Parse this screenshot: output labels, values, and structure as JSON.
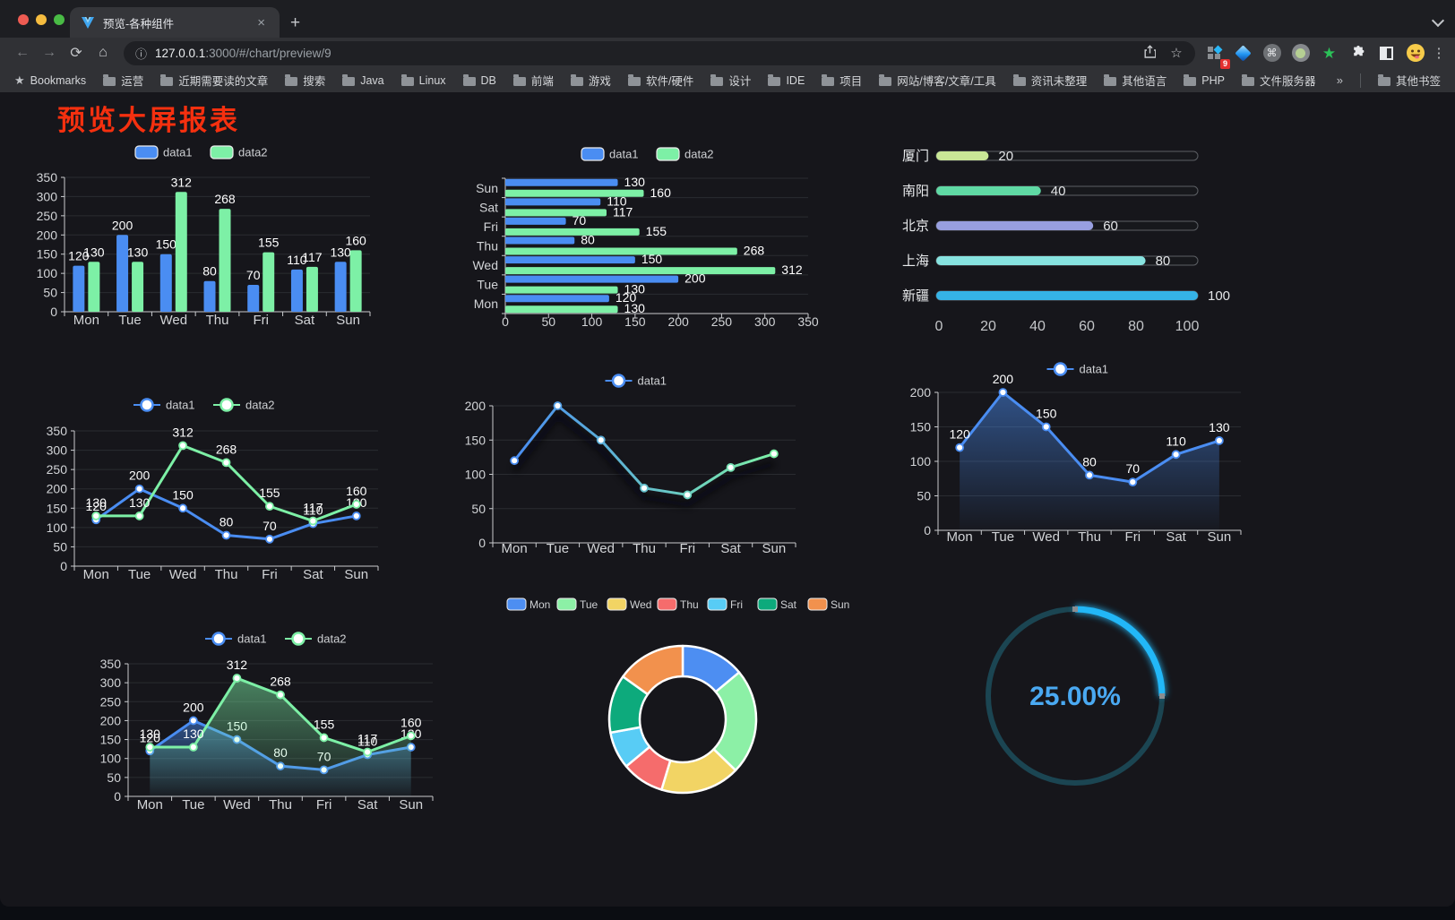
{
  "browser": {
    "tab": {
      "title": "预览-各种组件",
      "close_icon": "×",
      "new_tab_icon": "+"
    },
    "toolbar": {
      "back_icon": "←",
      "forward_icon": "→",
      "reload_icon": "⟳",
      "home_icon": "⌂",
      "url_info_icon": "ⓘ",
      "url_host": "127.0.0.1",
      "url_rest": ":3000/#/chart/preview/9",
      "star_icon": "☆",
      "extension_badge": "9",
      "command_icon": "⌘",
      "green_star_icon": "★",
      "menu_icon": "⋮"
    },
    "bookmarks_bar": {
      "star_icon": "★",
      "label": "Bookmarks",
      "folders": [
        "运营",
        "近期需要读的文章",
        "搜索",
        "Java",
        "Linux",
        "DB",
        "前端",
        "游戏",
        "软件/硬件",
        "设计",
        "IDE",
        "项目",
        "网站/博客/文章/工具",
        "资讯未整理",
        "其他语言",
        "PHP",
        "文件服务器"
      ],
      "overflow_icon": "»",
      "other_bookmarks": "其他书签"
    }
  },
  "page": {
    "title": "预览大屏报表",
    "title_color": "#f5300f"
  },
  "chart_data": [
    {
      "id": "bar-vertical",
      "type": "bar",
      "categories": [
        "Mon",
        "Tue",
        "Wed",
        "Thu",
        "Fri",
        "Sat",
        "Sun"
      ],
      "series": [
        {
          "name": "data1",
          "color": "#4a8df2",
          "values": [
            120,
            200,
            150,
            80,
            70,
            110,
            130
          ]
        },
        {
          "name": "data2",
          "color": "#7df0a6",
          "values": [
            130,
            130,
            312,
            268,
            155,
            117,
            160
          ]
        }
      ],
      "ylim": [
        0,
        350
      ],
      "ytick_step": 50,
      "grid": true,
      "legend_position": "top"
    },
    {
      "id": "bar-horizontal",
      "type": "bar-horizontal",
      "categories": [
        "Mon",
        "Tue",
        "Wed",
        "Thu",
        "Fri",
        "Sat",
        "Sun"
      ],
      "series": [
        {
          "name": "data1",
          "color": "#4a8df2",
          "values": [
            120,
            200,
            150,
            80,
            70,
            110,
            130
          ]
        },
        {
          "name": "data2",
          "color": "#7df0a6",
          "values": [
            130,
            130,
            312,
            268,
            155,
            117,
            160
          ]
        }
      ],
      "xlim": [
        0,
        350
      ],
      "xtick_step": 50,
      "grid": true,
      "legend_position": "top"
    },
    {
      "id": "city-progress",
      "type": "progress-bar",
      "max": 100,
      "items": [
        {
          "label": "厦门",
          "value": 20,
          "color": "#c9e796"
        },
        {
          "label": "南阳",
          "value": 40,
          "color": "#5fd9a4"
        },
        {
          "label": "北京",
          "value": 60,
          "color": "#989fe0"
        },
        {
          "label": "上海",
          "value": 80,
          "color": "#87e3e0"
        },
        {
          "label": "新疆",
          "value": 100,
          "color": "#35b3e6"
        }
      ],
      "axis_ticks": [
        0,
        20,
        40,
        60,
        80,
        100
      ]
    },
    {
      "id": "line-two-series",
      "type": "line",
      "categories": [
        "Mon",
        "Tue",
        "Wed",
        "Thu",
        "Fri",
        "Sat",
        "Sun"
      ],
      "series": [
        {
          "name": "data1",
          "color": "#4a8df2",
          "values": [
            120,
            200,
            150,
            80,
            70,
            110,
            130
          ]
        },
        {
          "name": "data2",
          "color": "#7df0a6",
          "values": [
            130,
            130,
            312,
            268,
            155,
            117,
            160
          ]
        }
      ],
      "ylim": [
        0,
        350
      ],
      "ytick_step": 50,
      "grid": true,
      "legend_position": "top"
    },
    {
      "id": "line-gradient",
      "type": "line",
      "categories": [
        "Mon",
        "Tue",
        "Wed",
        "Thu",
        "Fri",
        "Sat",
        "Sun"
      ],
      "series": [
        {
          "name": "data1",
          "color": "#4a8df2",
          "color_end": "#7df0a6",
          "gradient": true,
          "values": [
            120,
            200,
            150,
            80,
            70,
            110,
            130
          ]
        }
      ],
      "ylim": [
        0,
        200
      ],
      "ytick_step": 50,
      "grid": true,
      "legend_position": "top"
    },
    {
      "id": "line-area",
      "type": "area",
      "categories": [
        "Mon",
        "Tue",
        "Wed",
        "Thu",
        "Fri",
        "Sat",
        "Sun"
      ],
      "series": [
        {
          "name": "data1",
          "color": "#4a8df2",
          "values": [
            120,
            200,
            150,
            80,
            70,
            110,
            130
          ]
        }
      ],
      "ylim": [
        0,
        200
      ],
      "ytick_step": 50,
      "grid": true,
      "legend_position": "top",
      "value_labels": true
    },
    {
      "id": "line-area-two",
      "type": "area",
      "categories": [
        "Mon",
        "Tue",
        "Wed",
        "Thu",
        "Fri",
        "Sat",
        "Sun"
      ],
      "series": [
        {
          "name": "data1",
          "color": "#4a8df2",
          "values": [
            120,
            200,
            150,
            80,
            70,
            110,
            130
          ]
        },
        {
          "name": "data2",
          "color": "#7df0a6",
          "values": [
            130,
            130,
            312,
            268,
            155,
            117,
            160
          ]
        }
      ],
      "ylim": [
        0,
        350
      ],
      "ytick_step": 50,
      "grid": true,
      "legend_position": "top",
      "value_labels": true
    },
    {
      "id": "donut",
      "type": "pie",
      "categories": [
        "Mon",
        "Tue",
        "Wed",
        "Thu",
        "Fri",
        "Sat",
        "Sun"
      ],
      "values": [
        120,
        200,
        150,
        80,
        70,
        110,
        130
      ],
      "colors": [
        "#4d8ef2",
        "#8cf0a6",
        "#f2d464",
        "#f56c6c",
        "#58ccf5",
        "#0daa7c",
        "#f2914d"
      ],
      "legend_position": "top"
    },
    {
      "id": "gauge",
      "type": "gauge",
      "value": 25,
      "max": 100,
      "label": "25.00%",
      "arc_color": "#22b7f7",
      "track_color": "#1b4552",
      "text_color": "#4aa9f2"
    }
  ]
}
